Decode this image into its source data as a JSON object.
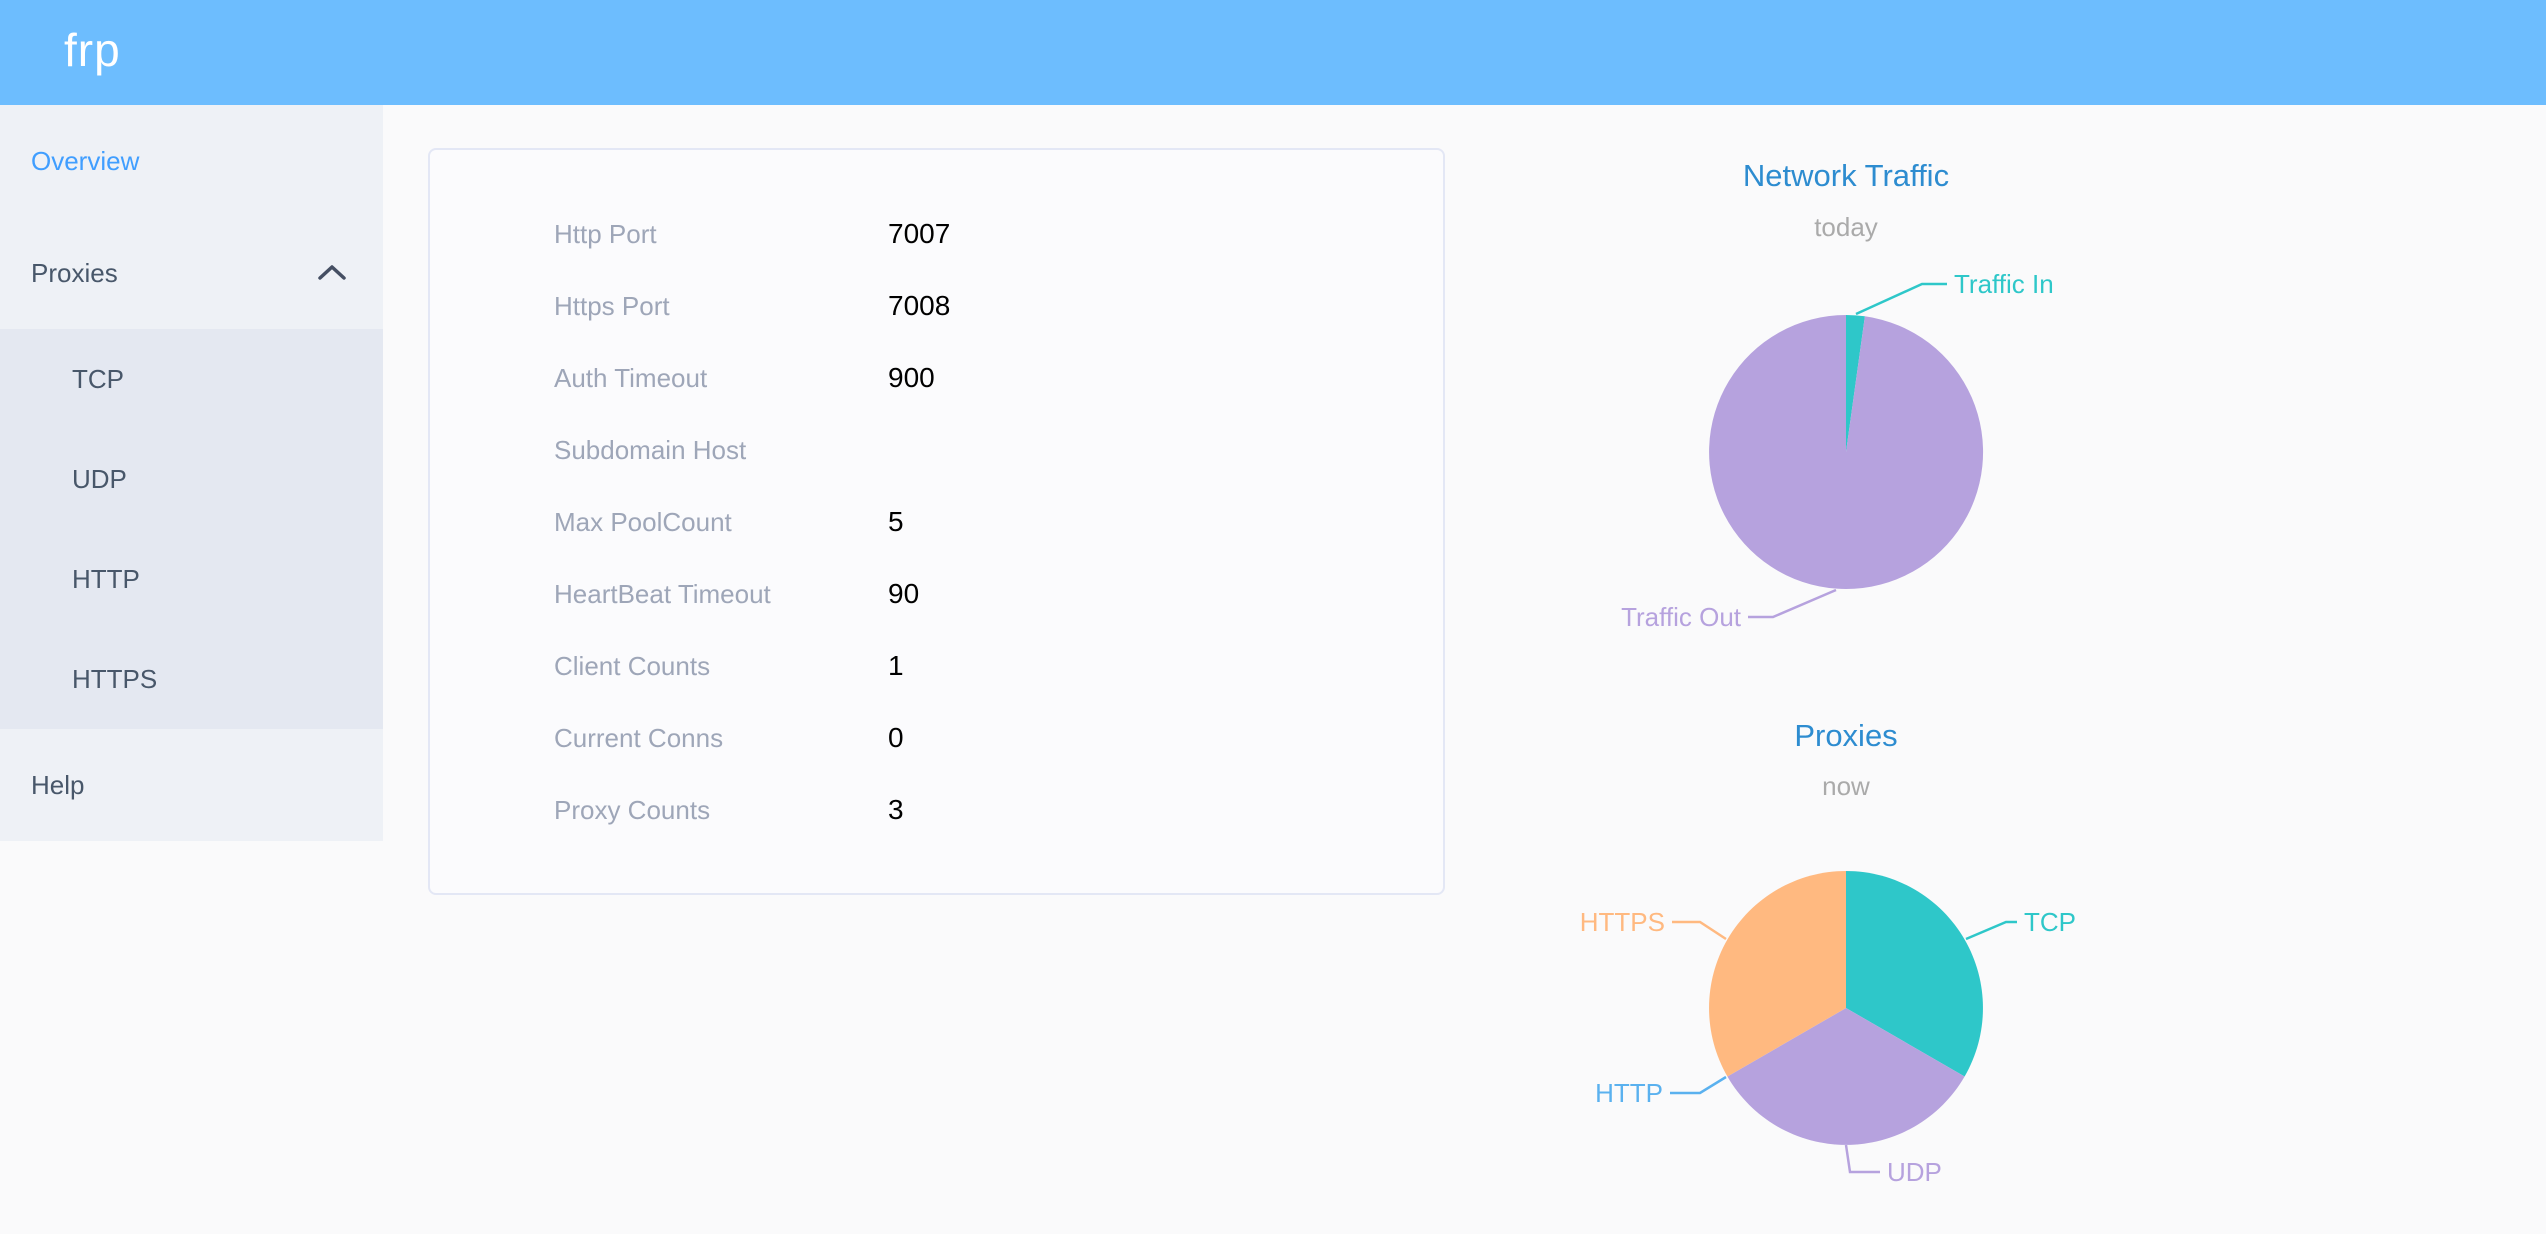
{
  "app": {
    "logo": "frp"
  },
  "theme": {
    "header_bg": "#6dbdfe",
    "sidebar_bg": "#eef1f6",
    "submenu_bg": "#e4e8f1",
    "sidebar_text": "#48576a",
    "active_link": "#409eff",
    "chart_title": "#2d8cd0",
    "chart_subtitle": "#aaaaaa",
    "config_label": "#9ea6b8",
    "config_value": "#000000",
    "card_border": "#e3e7f5",
    "page_bg": "#fafafb"
  },
  "sidebar": {
    "items": [
      {
        "label": "Overview",
        "active": true
      },
      {
        "label": "Proxies",
        "active": false,
        "expanded": true,
        "children": [
          "TCP",
          "UDP",
          "HTTP",
          "HTTPS"
        ]
      },
      {
        "label": "Help",
        "active": false
      }
    ]
  },
  "config": {
    "rows": [
      {
        "label": "Http Port",
        "value": "7007"
      },
      {
        "label": "Https Port",
        "value": "7008"
      },
      {
        "label": "Auth Timeout",
        "value": "900"
      },
      {
        "label": "Subdomain Host",
        "value": ""
      },
      {
        "label": "Max PoolCount",
        "value": "5"
      },
      {
        "label": "HeartBeat Timeout",
        "value": "90"
      },
      {
        "label": "Client Counts",
        "value": "1"
      },
      {
        "label": "Current Conns",
        "value": "0"
      },
      {
        "label": "Proxy Counts",
        "value": "3"
      }
    ]
  },
  "chart_data": [
    {
      "type": "pie",
      "title": "Network Traffic",
      "subtitle": "today",
      "legend_position": "callout-labels",
      "value_format": "percent estimated from arc (no numeric labels shown)",
      "slices": [
        {
          "label": "Traffic In",
          "value": 2.2,
          "color": "#2ec7c9"
        },
        {
          "label": "Traffic Out",
          "value": 97.8,
          "color": "#b6a2de"
        }
      ]
    },
    {
      "type": "pie",
      "title": "Proxies",
      "subtitle": "now",
      "legend_position": "callout-labels",
      "value_format": "proxy counts (total 3; HTTP slice is zero-width)",
      "slices": [
        {
          "label": "TCP",
          "value": 1,
          "color": "#2ec7c9"
        },
        {
          "label": "UDP",
          "value": 1,
          "color": "#b6a2de"
        },
        {
          "label": "HTTP",
          "value": 0,
          "color": "#5ab1ef"
        },
        {
          "label": "HTTPS",
          "value": 1,
          "color": "#ffb980"
        }
      ]
    }
  ]
}
